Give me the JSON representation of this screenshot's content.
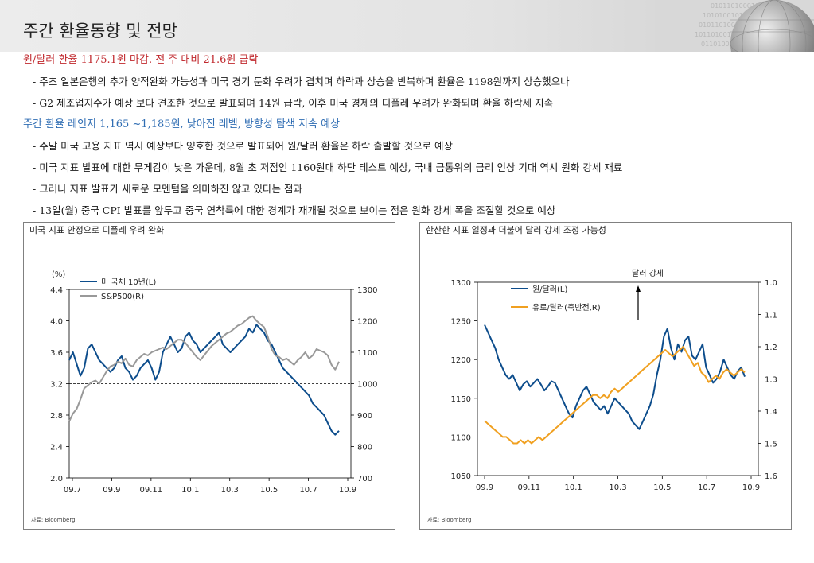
{
  "header": {
    "title": "주간 환율동향 및 전망"
  },
  "summary": {
    "head1": "원/달러 환율 1175.1원 마감. 전 주 대비 21.6원 급락",
    "b1": "- 주초 일본은행의 추가 양적완화 가능성과 미국 경기 둔화 우려가 겹치며 하락과 상승을 반복하며 환율은 1198원까지 상승했으나",
    "b2": "- G2 제조업지수가 예상 보다 견조한 것으로 발표되며 14원 급락, 이후 미국 경제의 디플레 우려가 완화되며 환율 하락세 지속",
    "head2": "주간 환율 레인지 1,165 ~1,185원, 낮아진 레벨, 방향성 탐색 지속 예상",
    "b3": "- 주말 미국 고용 지표 역시 예상보다 양호한 것으로 발표되어 원/달러 환율은 하락 출발할 것으로 예상",
    "b4": "- 미국 지표 발표에 대한 무게감이 낮은 가운데, 8월 초 저점인 1160원대 하단 테스트 예상, 국내 금통위의 금리 인상 기대 역시 원화 강세 재료",
    "b5": "- 그러나 지표 발표가 새로운 모멘텀을 의미하진 않고 있다는 점과",
    "b6": "- 13일(월) 중국 CPI 발표를 앞두고 중국 연착륙에 대한 경계가 재개될 것으로 보이는 점은 원화 강세 폭을 조절할 것으로 예상"
  },
  "colors": {
    "navy": "#0d4d8c",
    "gray": "#999999",
    "orange": "#f0a020",
    "red": "#c0282d",
    "blue": "#2f6db3"
  },
  "chart_data": [
    {
      "type": "line",
      "title": "미국 지표 안정으로 디플레 우려 완화",
      "unit_label": "(%)",
      "source": "자료: Bloomberg",
      "x_ticks": [
        "09.7",
        "09.9",
        "09.11",
        "10.1",
        "10.3",
        "10.5",
        "10.7",
        "10.9"
      ],
      "left_axis": {
        "ticks": [
          "4.4",
          "4.0",
          "3.6",
          "3.2",
          "2.8",
          "2.4",
          "2.0"
        ],
        "ylim": [
          2.0,
          4.4
        ]
      },
      "right_axis": {
        "ticks": [
          "1300",
          "1200",
          "1100",
          "1000",
          "900",
          "800",
          "700"
        ],
        "ylim": [
          700,
          1300
        ]
      },
      "reference_line": {
        "axis": "left",
        "value": 3.2,
        "style": "dashed"
      },
      "series": [
        {
          "name": "미 국채 10년(L)",
          "axis": "left",
          "color": "#0d4d8c",
          "values": [
            3.5,
            3.6,
            3.45,
            3.3,
            3.4,
            3.65,
            3.7,
            3.6,
            3.5,
            3.45,
            3.4,
            3.35,
            3.4,
            3.5,
            3.55,
            3.4,
            3.35,
            3.25,
            3.3,
            3.4,
            3.45,
            3.5,
            3.4,
            3.25,
            3.35,
            3.6,
            3.7,
            3.8,
            3.7,
            3.6,
            3.65,
            3.8,
            3.85,
            3.75,
            3.7,
            3.6,
            3.65,
            3.7,
            3.75,
            3.8,
            3.85,
            3.7,
            3.65,
            3.6,
            3.65,
            3.7,
            3.75,
            3.8,
            3.9,
            3.85,
            3.95,
            3.9,
            3.85,
            3.75,
            3.7,
            3.6,
            3.5,
            3.4,
            3.35,
            3.3,
            3.25,
            3.2,
            3.15,
            3.1,
            3.05,
            2.95,
            2.9,
            2.85,
            2.8,
            2.7,
            2.6,
            2.55,
            2.6
          ]
        },
        {
          "name": "S&P500(R)",
          "axis": "right",
          "color": "#999999",
          "values": [
            880,
            905,
            920,
            950,
            985,
            995,
            1005,
            1010,
            1000,
            1020,
            1040,
            1055,
            1060,
            1070,
            1065,
            1080,
            1060,
            1055,
            1075,
            1085,
            1095,
            1090,
            1100,
            1105,
            1110,
            1115,
            1110,
            1120,
            1130,
            1140,
            1140,
            1130,
            1115,
            1100,
            1085,
            1075,
            1090,
            1105,
            1120,
            1130,
            1140,
            1150,
            1160,
            1165,
            1175,
            1185,
            1190,
            1200,
            1210,
            1215,
            1200,
            1190,
            1180,
            1150,
            1110,
            1090,
            1085,
            1075,
            1080,
            1070,
            1060,
            1075,
            1085,
            1100,
            1080,
            1090,
            1110,
            1105,
            1100,
            1090,
            1060,
            1045,
            1070
          ]
        }
      ]
    },
    {
      "type": "line",
      "title": "한산한 지표 일정과 더불어 달러 강세 조정 가능성",
      "source": "자료: Bloomberg",
      "annotation": "달러 강세",
      "x_ticks": [
        "09.9",
        "09.11",
        "10.1",
        "10.3",
        "10.5",
        "10.7",
        "10.9"
      ],
      "left_axis": {
        "ticks": [
          "1300",
          "1250",
          "1200",
          "1150",
          "1100",
          "1050"
        ],
        "ylim": [
          1050,
          1300
        ]
      },
      "right_axis": {
        "ticks": [
          "1.0",
          "1.1",
          "1.2",
          "1.3",
          "1.4",
          "1.5",
          "1.6"
        ],
        "ylim": [
          1.6,
          1.0
        ],
        "inverted": true
      },
      "series": [
        {
          "name": "원/달러(L)",
          "axis": "left",
          "color": "#0d4d8c",
          "values": [
            1245,
            1235,
            1225,
            1215,
            1200,
            1190,
            1180,
            1175,
            1180,
            1170,
            1160,
            1168,
            1172,
            1165,
            1170,
            1175,
            1168,
            1160,
            1165,
            1172,
            1170,
            1160,
            1150,
            1140,
            1130,
            1125,
            1140,
            1150,
            1160,
            1165,
            1155,
            1145,
            1140,
            1135,
            1140,
            1130,
            1140,
            1150,
            1145,
            1140,
            1135,
            1130,
            1120,
            1115,
            1110,
            1120,
            1130,
            1140,
            1155,
            1180,
            1200,
            1230,
            1240,
            1215,
            1200,
            1220,
            1210,
            1225,
            1230,
            1205,
            1200,
            1210,
            1220,
            1190,
            1180,
            1170,
            1175,
            1185,
            1200,
            1190,
            1180,
            1175,
            1185,
            1190,
            1178
          ]
        },
        {
          "name": "유로/달러(축반전,R)",
          "axis": "right",
          "color": "#f0a020",
          "values": [
            1.43,
            1.44,
            1.45,
            1.46,
            1.47,
            1.48,
            1.48,
            1.49,
            1.5,
            1.5,
            1.49,
            1.5,
            1.49,
            1.5,
            1.49,
            1.48,
            1.49,
            1.48,
            1.47,
            1.46,
            1.45,
            1.44,
            1.43,
            1.42,
            1.41,
            1.4,
            1.39,
            1.38,
            1.37,
            1.36,
            1.35,
            1.35,
            1.36,
            1.35,
            1.36,
            1.34,
            1.33,
            1.34,
            1.33,
            1.32,
            1.31,
            1.3,
            1.29,
            1.28,
            1.27,
            1.26,
            1.25,
            1.24,
            1.23,
            1.22,
            1.21,
            1.22,
            1.23,
            1.22,
            1.21,
            1.2,
            1.22,
            1.24,
            1.26,
            1.25,
            1.28,
            1.29,
            1.31,
            1.3,
            1.29,
            1.3,
            1.28,
            1.27,
            1.28,
            1.29,
            1.28,
            1.27,
            1.28
          ]
        }
      ]
    }
  ]
}
